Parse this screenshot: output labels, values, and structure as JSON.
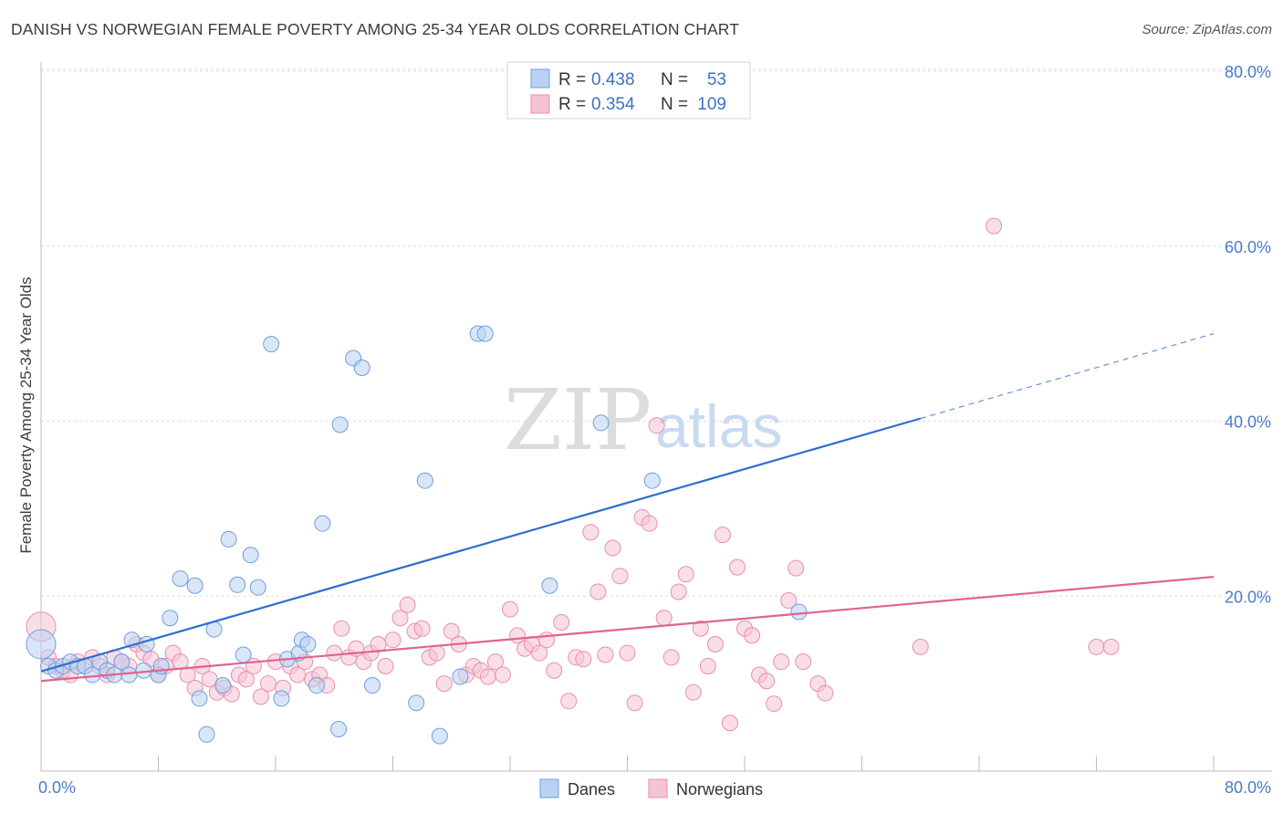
{
  "title": "DANISH VS NORWEGIAN FEMALE POVERTY AMONG 25-34 YEAR OLDS CORRELATION CHART",
  "source": "Source: ZipAtlas.com",
  "watermark": {
    "zip": "ZIP",
    "atlas": "atlas"
  },
  "colors": {
    "danes_fill": "#b9d1f2",
    "danes_stroke": "#6e9fdc",
    "danes_line": "#2e6fd0",
    "norwegians_fill": "#f6c3d3",
    "norwegians_stroke": "#e98fac",
    "norwegians_line": "#e0648e",
    "tick": "#4a7cc8"
  },
  "legend": {
    "rows": [
      {
        "r_label": "R =",
        "r_value": "0.438",
        "n_label": "N =",
        "n_value": "53"
      },
      {
        "r_label": "R =",
        "r_value": "0.354",
        "n_label": "N =",
        "n_value": "109"
      }
    ]
  },
  "chart_data": {
    "type": "scatter",
    "title": "DANISH VS NORWEGIAN FEMALE POVERTY AMONG 25-34 YEAR OLDS CORRELATION CHART",
    "xlabel": "",
    "ylabel": "Female Poverty Among 25-34 Year Olds",
    "xlim": [
      0,
      80
    ],
    "ylim": [
      0,
      80
    ],
    "x_tick_labels": [
      "0.0%",
      "80.0%"
    ],
    "y_tick_labels": [
      "20.0%",
      "40.0%",
      "60.0%",
      "80.0%"
    ],
    "y_ticks": [
      20,
      40,
      60,
      80
    ],
    "grid": "horizontal dashed",
    "legend_position": "top-center",
    "series": [
      {
        "name": "Danes",
        "r": 0.438,
        "n": 53,
        "trend": {
          "x0": 0,
          "y0": 11.4,
          "x1": 60,
          "y1": 40.3,
          "dashed_to_x": 80,
          "dashed_to_y": 50.0
        },
        "points": [
          [
            0.0,
            14.5
          ],
          [
            0.5,
            12.0
          ],
          [
            1.0,
            11.5
          ],
          [
            1.5,
            12.0
          ],
          [
            2.0,
            12.5
          ],
          [
            2.5,
            12.0
          ],
          [
            3.0,
            12.0
          ],
          [
            3.5,
            11.0
          ],
          [
            4.0,
            12.5
          ],
          [
            4.5,
            11.5
          ],
          [
            5.0,
            11.0
          ],
          [
            5.5,
            12.5
          ],
          [
            6.0,
            11.0
          ],
          [
            6.2,
            15.0
          ],
          [
            7.0,
            11.5
          ],
          [
            7.2,
            14.5
          ],
          [
            8.0,
            11.0
          ],
          [
            8.2,
            12.0
          ],
          [
            8.8,
            17.5
          ],
          [
            9.5,
            22.0
          ],
          [
            10.5,
            21.2
          ],
          [
            10.8,
            8.3
          ],
          [
            11.3,
            4.2
          ],
          [
            11.8,
            16.2
          ],
          [
            12.4,
            9.8
          ],
          [
            12.8,
            26.5
          ],
          [
            13.4,
            21.3
          ],
          [
            13.8,
            13.3
          ],
          [
            14.3,
            24.7
          ],
          [
            14.8,
            21.0
          ],
          [
            15.7,
            48.8
          ],
          [
            16.4,
            8.3
          ],
          [
            16.8,
            12.8
          ],
          [
            17.6,
            13.5
          ],
          [
            17.8,
            15.0
          ],
          [
            18.2,
            14.5
          ],
          [
            18.8,
            9.8
          ],
          [
            19.2,
            28.3
          ],
          [
            20.3,
            4.8
          ],
          [
            20.4,
            39.6
          ],
          [
            21.3,
            47.2
          ],
          [
            21.9,
            46.1
          ],
          [
            22.6,
            9.8
          ],
          [
            25.6,
            7.8
          ],
          [
            26.2,
            33.2
          ],
          [
            27.2,
            4.0
          ],
          [
            28.6,
            10.8
          ],
          [
            29.8,
            50.0
          ],
          [
            30.3,
            50.0
          ],
          [
            34.7,
            21.2
          ],
          [
            38.2,
            39.8
          ],
          [
            41.7,
            33.2
          ],
          [
            51.7,
            18.2
          ]
        ]
      },
      {
        "name": "Norwegians",
        "r": 0.354,
        "n": 109,
        "trend": {
          "x0": 0,
          "y0": 10.3,
          "x1": 80,
          "y1": 22.2
        },
        "points": [
          [
            0.0,
            16.5
          ],
          [
            0.5,
            13.0
          ],
          [
            1.0,
            12.0
          ],
          [
            1.5,
            11.5
          ],
          [
            2.0,
            11.0
          ],
          [
            2.5,
            12.5
          ],
          [
            3.0,
            12.0
          ],
          [
            3.5,
            13.0
          ],
          [
            4.0,
            12.0
          ],
          [
            4.5,
            11.0
          ],
          [
            5.0,
            13.0
          ],
          [
            5.5,
            12.5
          ],
          [
            6.0,
            12.0
          ],
          [
            6.5,
            14.5
          ],
          [
            7.0,
            13.5
          ],
          [
            7.5,
            12.8
          ],
          [
            8.0,
            11.0
          ],
          [
            8.5,
            12.0
          ],
          [
            9.0,
            13.5
          ],
          [
            9.5,
            12.5
          ],
          [
            10.0,
            11.0
          ],
          [
            10.5,
            9.5
          ],
          [
            11.0,
            12.0
          ],
          [
            11.5,
            10.5
          ],
          [
            12.0,
            9.0
          ],
          [
            12.5,
            9.5
          ],
          [
            13.0,
            8.8
          ],
          [
            13.5,
            11.0
          ],
          [
            14.0,
            10.5
          ],
          [
            14.5,
            12.0
          ],
          [
            15.0,
            8.5
          ],
          [
            15.5,
            10.0
          ],
          [
            16.0,
            12.5
          ],
          [
            16.5,
            9.5
          ],
          [
            17.0,
            12.0
          ],
          [
            17.5,
            11.0
          ],
          [
            18.0,
            12.5
          ],
          [
            18.5,
            10.5
          ],
          [
            19.0,
            11.0
          ],
          [
            19.5,
            9.8
          ],
          [
            20.0,
            13.5
          ],
          [
            20.5,
            16.3
          ],
          [
            21.0,
            13.0
          ],
          [
            21.5,
            14.0
          ],
          [
            22.0,
            12.5
          ],
          [
            22.5,
            13.5
          ],
          [
            23.0,
            14.5
          ],
          [
            23.5,
            12.0
          ],
          [
            24.0,
            15.0
          ],
          [
            24.5,
            17.5
          ],
          [
            25.0,
            19.0
          ],
          [
            25.5,
            16.0
          ],
          [
            26.0,
            16.3
          ],
          [
            26.5,
            13.0
          ],
          [
            27.0,
            13.5
          ],
          [
            27.5,
            10.0
          ],
          [
            28.0,
            16.0
          ],
          [
            28.5,
            14.5
          ],
          [
            29.0,
            11.0
          ],
          [
            29.5,
            12.0
          ],
          [
            30.0,
            11.5
          ],
          [
            30.5,
            10.8
          ],
          [
            31.0,
            12.5
          ],
          [
            31.5,
            11.0
          ],
          [
            32.0,
            18.5
          ],
          [
            32.5,
            15.5
          ],
          [
            33.0,
            14.0
          ],
          [
            33.5,
            14.5
          ],
          [
            34.0,
            13.5
          ],
          [
            34.5,
            15.0
          ],
          [
            35.0,
            11.5
          ],
          [
            35.5,
            17.0
          ],
          [
            36.0,
            8.0
          ],
          [
            36.5,
            13.0
          ],
          [
            37.0,
            12.8
          ],
          [
            37.5,
            27.3
          ],
          [
            38.0,
            20.5
          ],
          [
            38.5,
            13.3
          ],
          [
            39.0,
            25.5
          ],
          [
            39.5,
            22.3
          ],
          [
            40.0,
            13.5
          ],
          [
            40.5,
            7.8
          ],
          [
            41.0,
            29.0
          ],
          [
            41.5,
            28.3
          ],
          [
            42.0,
            39.5
          ],
          [
            42.5,
            17.5
          ],
          [
            43.0,
            13.0
          ],
          [
            43.5,
            20.5
          ],
          [
            44.0,
            22.5
          ],
          [
            44.5,
            9.0
          ],
          [
            45.0,
            16.3
          ],
          [
            45.5,
            12.0
          ],
          [
            46.0,
            14.5
          ],
          [
            46.5,
            27.0
          ],
          [
            47.0,
            5.5
          ],
          [
            47.5,
            23.3
          ],
          [
            48.0,
            16.3
          ],
          [
            48.5,
            15.5
          ],
          [
            49.0,
            11.0
          ],
          [
            49.5,
            10.3
          ],
          [
            50.0,
            7.7
          ],
          [
            50.5,
            12.5
          ],
          [
            51.0,
            19.5
          ],
          [
            51.5,
            23.2
          ],
          [
            52.0,
            12.5
          ],
          [
            53.0,
            10.0
          ],
          [
            53.5,
            8.9
          ],
          [
            60.0,
            14.2
          ],
          [
            65.0,
            62.3
          ],
          [
            72.0,
            14.2
          ],
          [
            73.0,
            14.2
          ]
        ]
      }
    ]
  },
  "bottom_legend": [
    "Danes",
    "Norwegians"
  ]
}
